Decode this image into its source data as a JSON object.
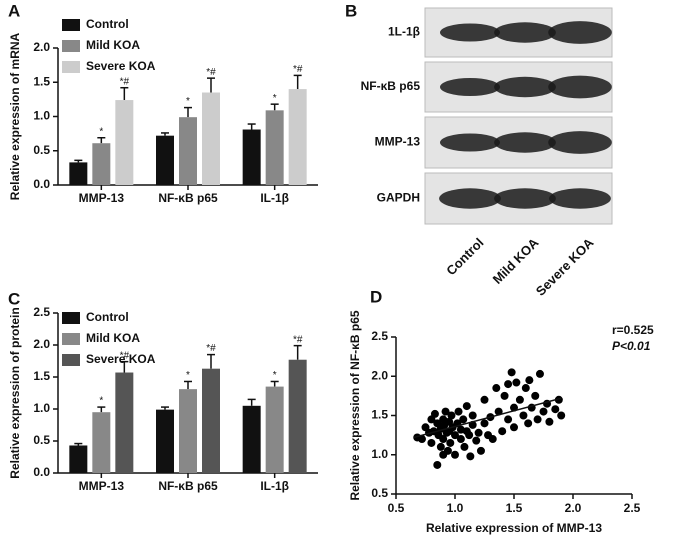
{
  "chart_data": [
    {
      "type": "bar",
      "panel": "A",
      "ylabel": "Relative expression of mRNA",
      "categories": [
        "MMP-13",
        "NF-κB p65",
        "IL-1β"
      ],
      "series": [
        {
          "name": "Control",
          "color": "#111111",
          "values": [
            0.33,
            0.72,
            0.81
          ],
          "errors": [
            0.03,
            0.04,
            0.08
          ]
        },
        {
          "name": "Mild KOA",
          "color": "#888888",
          "values": [
            0.61,
            0.99,
            1.09
          ],
          "errors": [
            0.08,
            0.14,
            0.09
          ],
          "annotations": [
            "*",
            "*",
            "*"
          ]
        },
        {
          "name": "Severe KOA",
          "color": "#cccccc",
          "values": [
            1.24,
            1.35,
            1.4
          ],
          "errors": [
            0.18,
            0.21,
            0.2
          ],
          "annotations": [
            "*#",
            "*#",
            "*#"
          ]
        }
      ],
      "ylim": [
        0,
        2
      ],
      "yticks": [
        {
          "value": 0,
          "label": "0.0"
        },
        0.5,
        {
          "value": 1,
          "label": "1.0"
        },
        1.5,
        {
          "value": 2,
          "label": "2.0"
        }
      ]
    },
    {
      "type": "blot",
      "panel": "B",
      "rows": [
        "1L-1β",
        "NF-κB p65",
        "MMP-13",
        "GAPDH"
      ],
      "lanes": [
        "Control",
        "Mild KOA",
        "Severe KOA"
      ]
    },
    {
      "type": "bar",
      "panel": "C",
      "ylabel": "Relative expression of protein",
      "categories": [
        "MMP-13",
        "NF-κB p65",
        "IL-1β"
      ],
      "series": [
        {
          "name": "Control",
          "color": "#111111",
          "values": [
            0.43,
            0.99,
            1.05
          ],
          "errors": [
            0.03,
            0.04,
            0.1
          ]
        },
        {
          "name": "Mild KOA",
          "color": "#888888",
          "values": [
            0.95,
            1.31,
            1.35
          ],
          "errors": [
            0.08,
            0.12,
            0.08
          ],
          "annotations": [
            "*",
            "*",
            "*"
          ]
        },
        {
          "name": "Severe KOA",
          "color": "#555555",
          "values": [
            1.57,
            1.63,
            1.77
          ],
          "errors": [
            0.17,
            0.22,
            0.22
          ],
          "annotations": [
            "*#",
            "*#",
            "*#"
          ]
        }
      ],
      "ylim": [
        0,
        2.5
      ],
      "yticks": [
        {
          "value": 0,
          "label": "0.0"
        },
        0.5,
        {
          "value": 1,
          "label": "1.0"
        },
        1.5,
        {
          "value": 2,
          "label": "2.0"
        },
        2.5
      ]
    },
    {
      "type": "scatter",
      "panel": "D",
      "xlabel": "Relative expression of MMP-13",
      "ylabel": "Relative expression of NF-κB p65",
      "annotations": [
        "r=0.525",
        "P<0.01"
      ],
      "color": "#000000",
      "x": [
        0.72,
        0.75,
        0.78,
        0.8,
        0.8,
        0.82,
        0.83,
        0.85,
        0.85,
        0.86,
        0.88,
        0.88,
        0.9,
        0.9,
        0.91,
        0.92,
        0.93,
        0.94,
        0.95,
        0.95,
        0.96,
        0.97,
        0.98,
        1.0,
        1.0,
        1.02,
        1.03,
        1.05,
        1.05,
        1.07,
        1.08,
        1.1,
        1.1,
        1.12,
        1.13,
        1.15,
        1.15,
        1.18,
        1.2,
        1.22,
        1.25,
        1.25,
        1.28,
        1.3,
        1.32,
        1.35,
        1.37,
        1.4,
        1.42,
        1.45,
        1.45,
        1.48,
        1.5,
        1.5,
        1.52,
        1.55,
        1.58,
        1.6,
        1.62,
        1.63,
        1.65,
        1.68,
        1.7,
        1.72,
        1.75,
        1.78,
        1.8,
        1.85,
        1.88,
        1.9,
        0.68,
        0.9
      ],
      "y": [
        1.2,
        1.35,
        1.28,
        1.45,
        1.15,
        1.3,
        1.52,
        0.87,
        1.4,
        1.25,
        1.33,
        1.1,
        1.45,
        1.2,
        1.38,
        1.55,
        1.28,
        1.05,
        1.42,
        1.3,
        1.15,
        1.5,
        1.35,
        1.0,
        1.25,
        1.4,
        1.55,
        1.2,
        1.32,
        1.45,
        1.1,
        1.3,
        1.62,
        1.25,
        0.98,
        1.38,
        1.5,
        1.18,
        1.28,
        1.05,
        1.4,
        1.7,
        1.25,
        1.48,
        1.2,
        1.85,
        1.55,
        1.3,
        1.75,
        1.45,
        1.9,
        2.05,
        1.6,
        1.35,
        1.92,
        1.7,
        1.5,
        1.85,
        1.4,
        1.95,
        1.6,
        1.75,
        1.45,
        2.03,
        1.55,
        1.65,
        1.42,
        1.58,
        1.7,
        1.5,
        1.22,
        1.0
      ],
      "fit_line": {
        "x": [
          0.65,
          1.9
        ],
        "y": [
          1.22,
          1.72
        ]
      },
      "xlim": [
        0.5,
        2.5
      ],
      "xticks": [
        0.5,
        {
          "value": 1,
          "label": "1.0"
        },
        1.5,
        {
          "value": 2,
          "label": "2.0"
        },
        2.5
      ],
      "ylim": [
        0.5,
        2.5
      ],
      "yticks": [
        0.5,
        {
          "value": 1,
          "label": "1.0"
        },
        1.5,
        {
          "value": 2,
          "label": "2.0"
        },
        2.5
      ]
    }
  ]
}
